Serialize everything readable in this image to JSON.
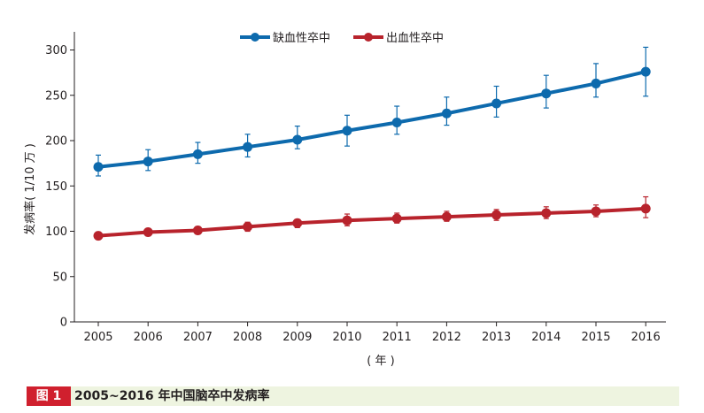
{
  "caption": {
    "figure_label": "图 1",
    "title": "2005~2016 年中国脑卒中发病率"
  },
  "chart_data": {
    "type": "line",
    "title": "",
    "xlabel": "( 年 )",
    "ylabel": "发病率( 1/10 万 )",
    "ylim": [
      0,
      320
    ],
    "yticks": [
      0,
      50,
      100,
      150,
      200,
      250,
      300
    ],
    "x": [
      2005,
      2006,
      2007,
      2008,
      2009,
      2010,
      2011,
      2012,
      2013,
      2014,
      2015,
      2016
    ],
    "legend_position": "top-center",
    "grid": false,
    "series": [
      {
        "name": "缺血性卒中",
        "color": "#0d6aad",
        "values": [
          171,
          177,
          185,
          193,
          201,
          211,
          220,
          230,
          241,
          252,
          263,
          276
        ],
        "error_low": [
          161,
          167,
          175,
          182,
          191,
          194,
          207,
          217,
          226,
          236,
          248,
          249
        ],
        "error_high": [
          184,
          190,
          198,
          207,
          216,
          228,
          238,
          248,
          260,
          272,
          285,
          303
        ]
      },
      {
        "name": "出血性卒中",
        "color": "#b8232c",
        "values": [
          95,
          99,
          101,
          105,
          109,
          112,
          114,
          116,
          118,
          120,
          122,
          125
        ],
        "error_low": [
          92,
          95,
          97,
          100,
          104,
          106,
          109,
          111,
          112,
          114,
          116,
          115
        ],
        "error_high": [
          99,
          102,
          105,
          110,
          113,
          119,
          120,
          122,
          124,
          127,
          129,
          138
        ]
      }
    ]
  }
}
